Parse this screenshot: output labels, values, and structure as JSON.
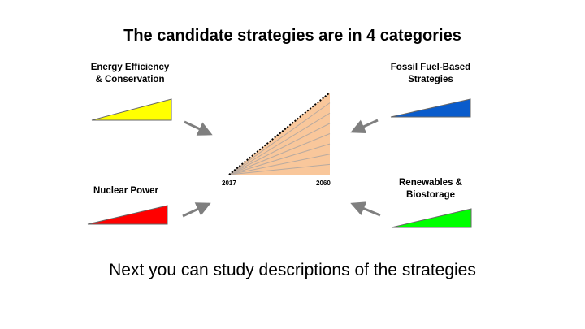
{
  "title": "The candidate strategies are in 4 categories",
  "categories": [
    {
      "label_line1": "Energy Efficiency",
      "label_line2": "& Conservation",
      "color": "#ffff00"
    },
    {
      "label_line1": "Fossil Fuel-Based",
      "label_line2": "Strategies",
      "color": "#0a5ccc"
    },
    {
      "label_line1": "Nuclear Power",
      "label_line2": "",
      "color": "#ff0000"
    },
    {
      "label_line1": "Renewables &",
      "label_line2": "Biostorage",
      "color": "#00ff00"
    }
  ],
  "wedge": {
    "start_year": "2017",
    "end_year": "2060",
    "fill_color": "#f9c79b",
    "line_color": "#b8aaa0"
  },
  "subtitle": "Next you can study descriptions of the strategies"
}
